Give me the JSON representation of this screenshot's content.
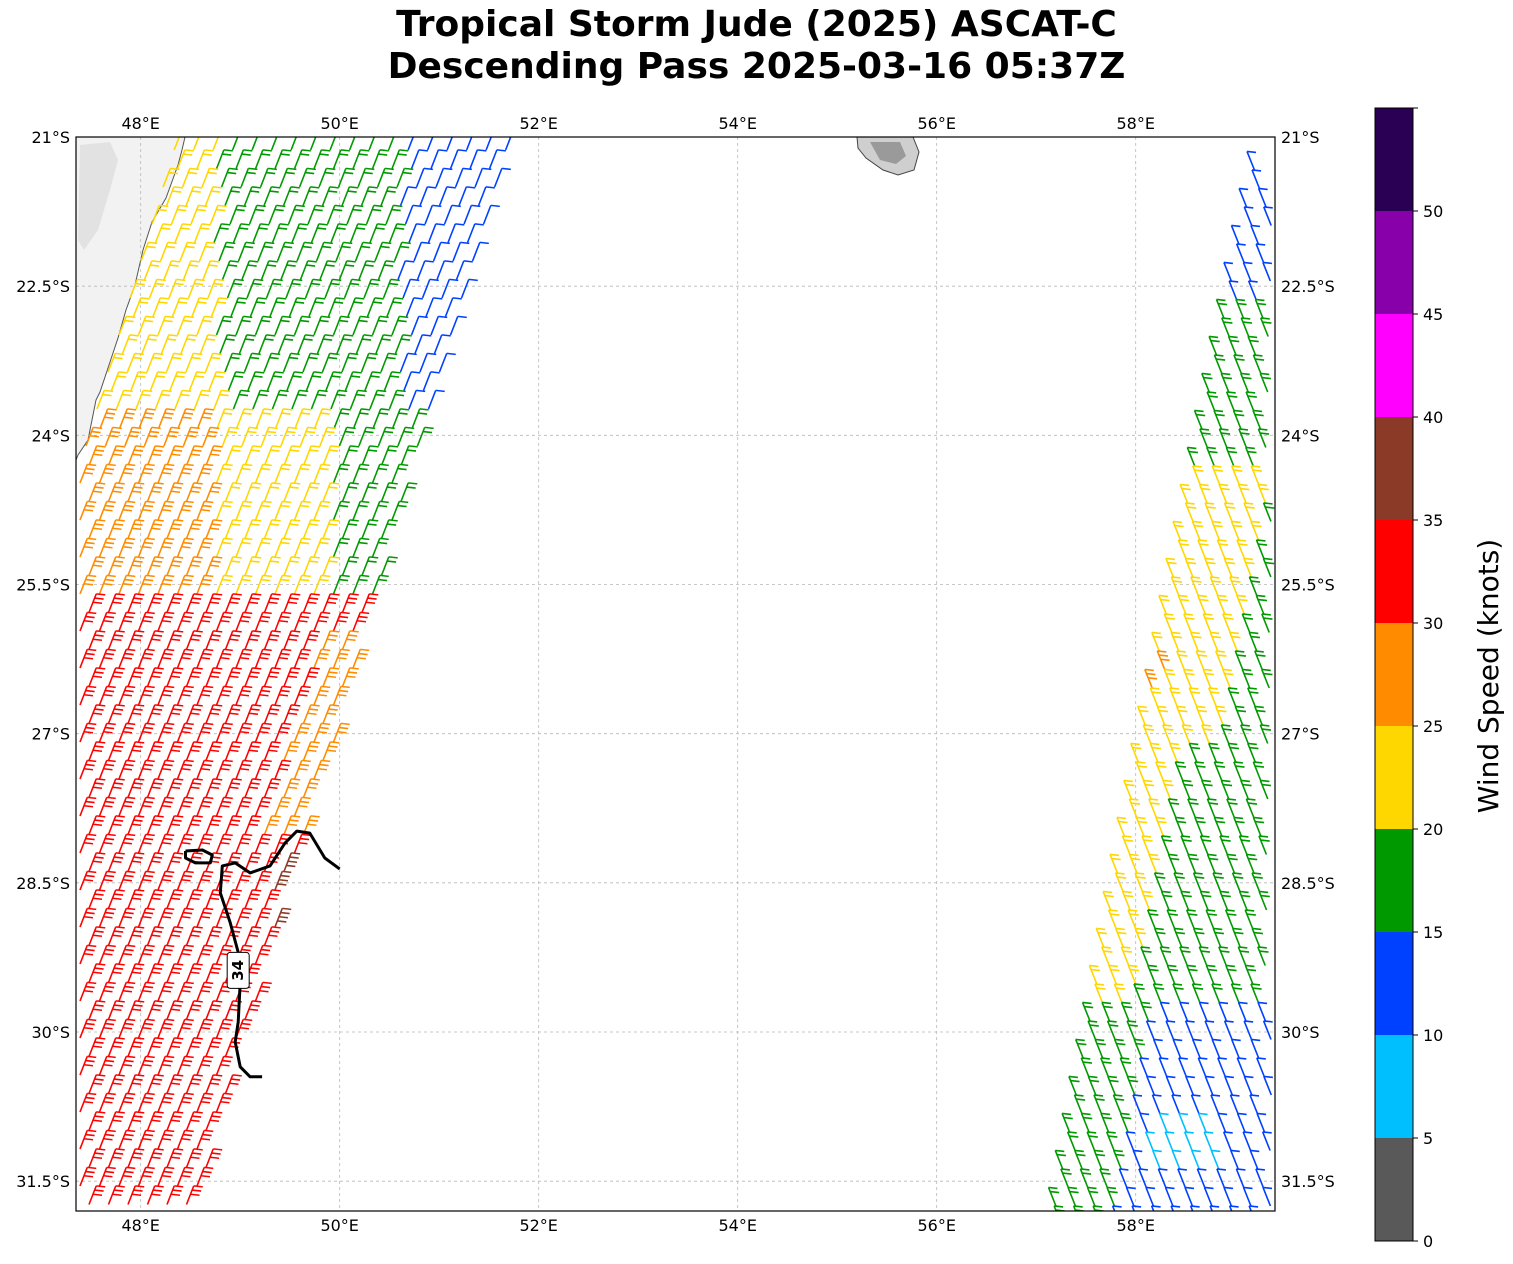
{
  "title": {
    "line1": "Tropical Storm Jude (2025) ASCAT-C",
    "line2": "Descending Pass 2025-03-16 05:37Z"
  },
  "map": {
    "lon_range": [
      47.35,
      59.4
    ],
    "lat_range": [
      -31.8,
      -21.0
    ],
    "lon_ticks": [
      {
        "value": 48,
        "label": "48°E"
      },
      {
        "value": 50,
        "label": "50°E"
      },
      {
        "value": 52,
        "label": "52°E"
      },
      {
        "value": 54,
        "label": "54°E"
      },
      {
        "value": 56,
        "label": "56°E"
      },
      {
        "value": 58,
        "label": "58°E"
      }
    ],
    "lat_ticks": [
      {
        "value": -21.0,
        "label": "21°S"
      },
      {
        "value": -22.5,
        "label": "22.5°S"
      },
      {
        "value": -24.0,
        "label": "24°S"
      },
      {
        "value": -25.5,
        "label": "25.5°S"
      },
      {
        "value": -27.0,
        "label": "27°S"
      },
      {
        "value": -28.5,
        "label": "28.5°S"
      },
      {
        "value": -30.0,
        "label": "30°S"
      },
      {
        "value": -31.5,
        "label": "31.5°S"
      }
    ],
    "gridlines": true,
    "contour_label": "34",
    "contour_34kt": [
      [
        50.0,
        -28.36
      ],
      [
        49.85,
        -28.25
      ],
      [
        49.7,
        -28.0
      ],
      [
        49.57,
        -27.98
      ],
      [
        49.45,
        -28.1
      ],
      [
        49.3,
        -28.33
      ],
      [
        49.1,
        -28.4
      ],
      [
        48.95,
        -28.3
      ],
      [
        48.82,
        -28.33
      ],
      [
        48.8,
        -28.6
      ],
      [
        48.9,
        -28.9
      ],
      [
        48.98,
        -29.2
      ],
      [
        49.0,
        -29.5
      ],
      [
        48.98,
        -29.9
      ],
      [
        48.95,
        -30.1
      ],
      [
        49.0,
        -30.35
      ],
      [
        49.1,
        -30.45
      ],
      [
        49.22,
        -30.45
      ]
    ],
    "contour_34kt_loop": [
      [
        48.45,
        -28.18
      ],
      [
        48.62,
        -28.17
      ],
      [
        48.72,
        -28.22
      ],
      [
        48.7,
        -28.3
      ],
      [
        48.55,
        -28.3
      ],
      [
        48.45,
        -28.25
      ],
      [
        48.45,
        -28.18
      ]
    ],
    "colors": {
      "land_fill": "#f2f2f2",
      "coast": "#555555",
      "grid": "#b8b8b8",
      "contour": "#000000"
    }
  },
  "colorbar": {
    "label": "Wind Speed (knots)",
    "ticks": [
      "0",
      "5",
      "10",
      "15",
      "20",
      "25",
      "30",
      "35",
      "40",
      "45",
      "50"
    ],
    "bins": [
      {
        "min": 0,
        "max": 5,
        "color": "#595959"
      },
      {
        "min": 5,
        "max": 10,
        "color": "#00bfff"
      },
      {
        "min": 10,
        "max": 15,
        "color": "#0040ff"
      },
      {
        "min": 15,
        "max": 20,
        "color": "#009900"
      },
      {
        "min": 20,
        "max": 25,
        "color": "#ffd700"
      },
      {
        "min": 25,
        "max": 30,
        "color": "#ff8c00"
      },
      {
        "min": 30,
        "max": 35,
        "color": "#ff0000"
      },
      {
        "min": 35,
        "max": 40,
        "color": "#8b3a28"
      },
      {
        "min": 40,
        "max": 45,
        "color": "#ff00ff"
      },
      {
        "min": 45,
        "max": 50,
        "color": "#8800aa"
      },
      {
        "min": 50,
        "max": 55,
        "color": "#2a0055"
      }
    ]
  }
}
